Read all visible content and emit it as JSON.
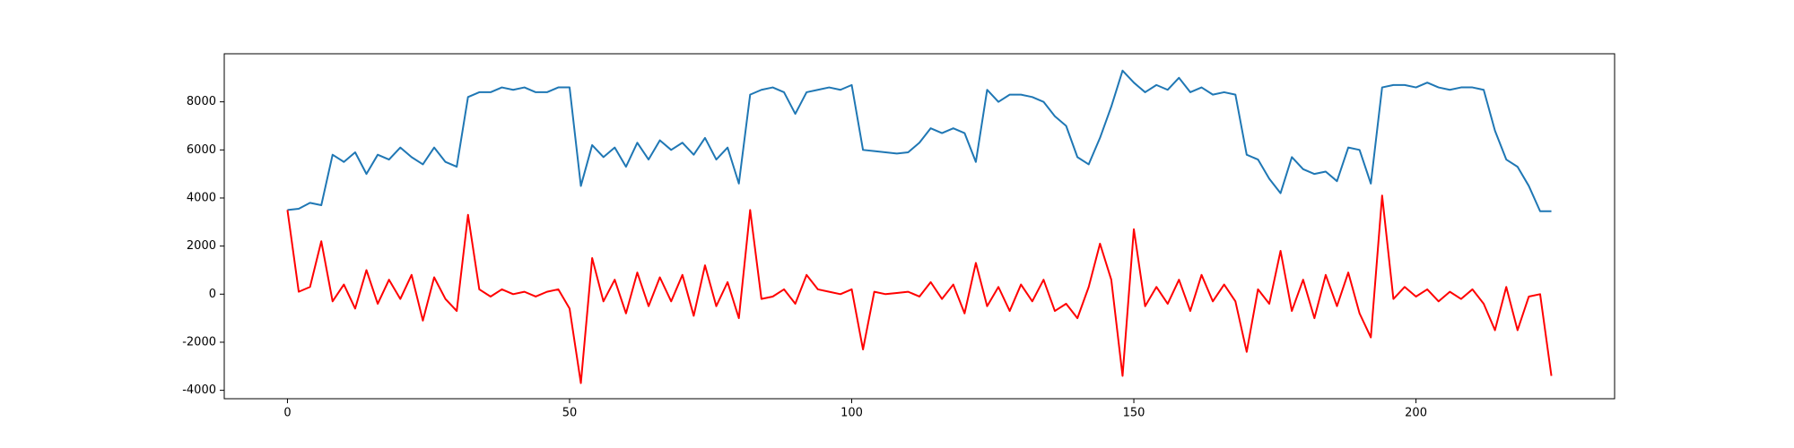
{
  "chart_data": {
    "type": "line",
    "x": [
      0,
      2,
      4,
      6,
      8,
      10,
      12,
      14,
      16,
      18,
      20,
      22,
      24,
      26,
      28,
      30,
      32,
      34,
      36,
      38,
      40,
      42,
      44,
      46,
      48,
      50,
      52,
      54,
      56,
      58,
      60,
      62,
      64,
      66,
      68,
      70,
      72,
      74,
      76,
      78,
      80,
      82,
      84,
      86,
      88,
      90,
      92,
      94,
      96,
      98,
      100,
      102,
      104,
      106,
      108,
      110,
      112,
      114,
      116,
      118,
      120,
      122,
      124,
      126,
      128,
      130,
      132,
      134,
      136,
      138,
      140,
      142,
      144,
      146,
      148,
      150,
      152,
      154,
      156,
      158,
      160,
      162,
      164,
      166,
      168,
      170,
      172,
      174,
      176,
      178,
      180,
      182,
      184,
      186,
      188,
      190,
      192,
      194,
      196,
      198,
      200,
      202,
      204,
      206,
      208,
      210,
      212,
      214,
      216,
      218,
      220,
      222,
      224
    ],
    "series": [
      {
        "color": "#1f77b4",
        "values": [
          3500,
          3550,
          3800,
          3700,
          5800,
          5500,
          5900,
          5000,
          5800,
          5600,
          6100,
          5700,
          5400,
          6100,
          5500,
          5300,
          8200,
          8400,
          8400,
          8600,
          8500,
          8600,
          8400,
          8400,
          8600,
          8600,
          4500,
          6200,
          5700,
          6100,
          5300,
          6300,
          5600,
          6400,
          6000,
          6300,
          5800,
          6500,
          5600,
          6100,
          4600,
          8300,
          8500,
          8600,
          8400,
          7500,
          8400,
          8500,
          8600,
          8500,
          8700,
          6000,
          5950,
          5900,
          5850,
          5900,
          6300,
          6900,
          6700,
          6900,
          6700,
          5500,
          8500,
          8000,
          8300,
          8300,
          8200,
          8000,
          7400,
          7000,
          5700,
          5400,
          6500,
          7800,
          9300,
          8800,
          8400,
          8700,
          8500,
          9000,
          8400,
          8600,
          8300,
          8400,
          8300,
          5800,
          5600,
          4800,
          4200,
          5700,
          5200,
          5000,
          5100,
          4700,
          6100,
          6000,
          4600,
          8600,
          8700,
          8700,
          8600,
          8800,
          8600,
          8500,
          8600,
          8600,
          8500,
          6800,
          5600,
          5300,
          4500,
          3450,
          3450
        ]
      },
      {
        "color": "#ff0000",
        "values": [
          3500,
          100,
          300,
          2200,
          -300,
          400,
          -600,
          1000,
          -400,
          600,
          -200,
          800,
          -1100,
          700,
          -200,
          -700,
          3300,
          200,
          -100,
          200,
          0,
          100,
          -100,
          100,
          200,
          -600,
          -3700,
          1500,
          -300,
          600,
          -800,
          900,
          -500,
          700,
          -300,
          800,
          -900,
          1200,
          -500,
          500,
          -1000,
          3500,
          -200,
          -100,
          200,
          -400,
          800,
          200,
          100,
          0,
          200,
          -2300,
          100,
          0,
          50,
          100,
          -100,
          500,
          -200,
          400,
          -800,
          1300,
          -500,
          300,
          -700,
          400,
          -300,
          600,
          -700,
          -400,
          -1000,
          300,
          2100,
          600,
          -3400,
          2700,
          -500,
          300,
          -400,
          600,
          -700,
          800,
          -300,
          400,
          -300,
          -2400,
          200,
          -400,
          1800,
          -700,
          600,
          -1000,
          800,
          -500,
          900,
          -800,
          -1800,
          4100,
          -200,
          300,
          -100,
          200,
          -300,
          100,
          -200,
          200,
          -400,
          -1500,
          300,
          -1500,
          -100,
          0,
          -3400
        ]
      }
    ],
    "xlim": [
      -11.2,
      235.2
    ],
    "ylim": [
      -4350,
      10000
    ],
    "xticks": [
      0,
      50,
      100,
      150,
      200
    ],
    "yticks": [
      -4000,
      -2000,
      0,
      2000,
      4000,
      6000,
      8000
    ]
  }
}
